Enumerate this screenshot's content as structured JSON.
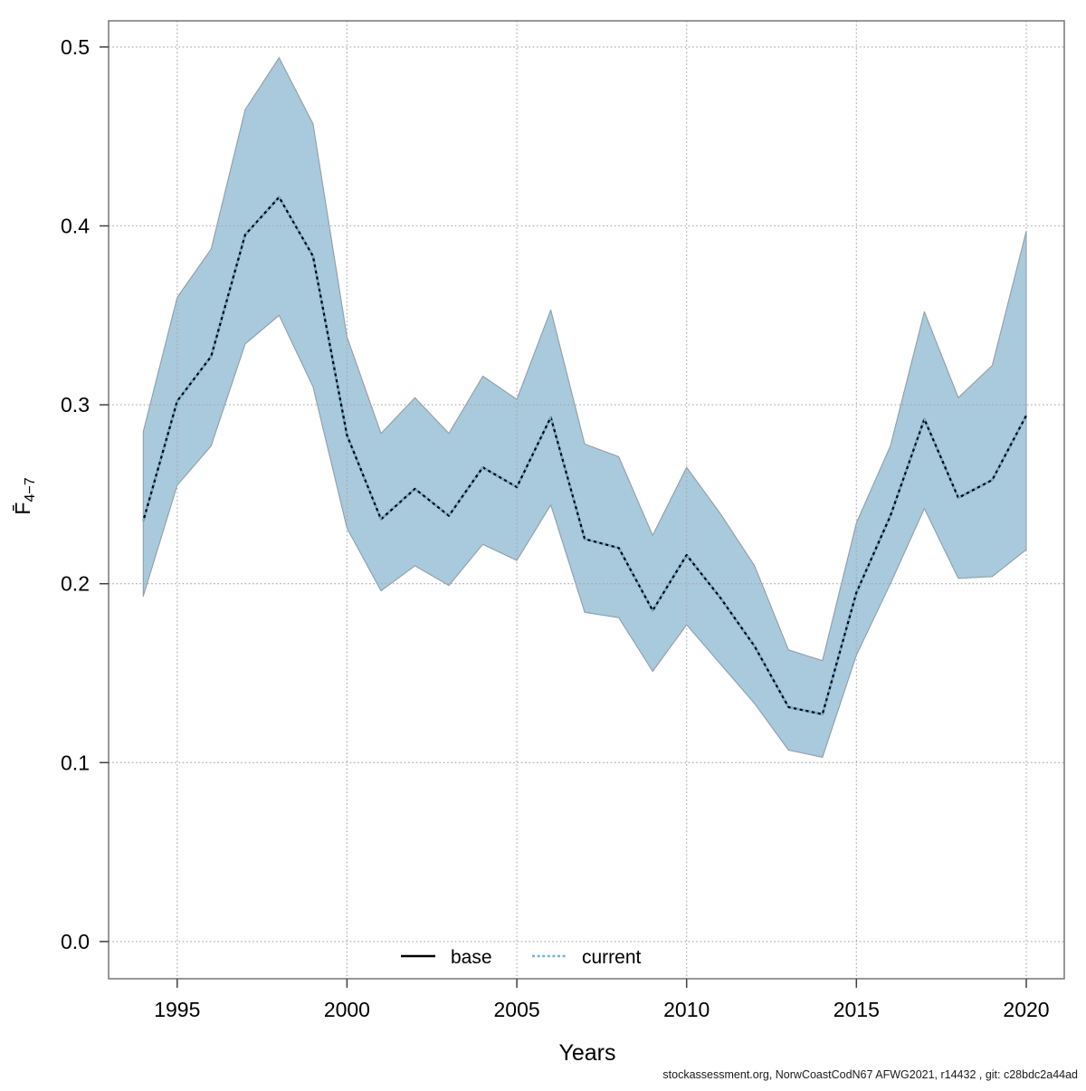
{
  "chart_data": {
    "type": "line",
    "title": "",
    "xlabel": "Years",
    "ylabel_main": "F̄",
    "ylabel_subscript": "4−7",
    "x": [
      1994,
      1995,
      1996,
      1997,
      1998,
      1999,
      2000,
      2001,
      2002,
      2003,
      2004,
      2005,
      2006,
      2007,
      2008,
      2009,
      2010,
      2011,
      2012,
      2013,
      2014,
      2015,
      2016,
      2017,
      2018,
      2019,
      2020
    ],
    "series": [
      {
        "name": "base",
        "line_style": "solid",
        "color": "#000000",
        "values_visually_identical_to": "current"
      },
      {
        "name": "current",
        "line_style": "dotted",
        "color": "#74b4d8",
        "values": [
          0.235,
          0.302,
          0.327,
          0.395,
          0.416,
          0.383,
          0.283,
          0.236,
          0.253,
          0.238,
          0.265,
          0.254,
          0.293,
          0.225,
          0.22,
          0.185,
          0.216,
          0.192,
          0.165,
          0.131,
          0.127,
          0.195,
          0.238,
          0.292,
          0.248,
          0.258,
          0.294
        ]
      }
    ],
    "confidence_band": {
      "lower": [
        0.193,
        0.255,
        0.277,
        0.334,
        0.35,
        0.31,
        0.231,
        0.196,
        0.21,
        0.199,
        0.222,
        0.213,
        0.244,
        0.184,
        0.181,
        0.151,
        0.177,
        0.155,
        0.133,
        0.107,
        0.103,
        0.16,
        0.2,
        0.242,
        0.203,
        0.204,
        0.219
      ],
      "upper": [
        0.285,
        0.36,
        0.387,
        0.465,
        0.494,
        0.457,
        0.338,
        0.284,
        0.304,
        0.284,
        0.316,
        0.303,
        0.353,
        0.278,
        0.271,
        0.227,
        0.265,
        0.239,
        0.21,
        0.163,
        0.157,
        0.234,
        0.277,
        0.352,
        0.304,
        0.322,
        0.397
      ],
      "fill": "#a9c9dc"
    },
    "x_ticks": [
      "1995",
      "2000",
      "2005",
      "2010",
      "2015",
      "2020"
    ],
    "x_tick_years": [
      1995,
      2000,
      2005,
      2010,
      2015,
      2020
    ],
    "y_ticks": [
      "0.0",
      "0.1",
      "0.2",
      "0.3",
      "0.4",
      "0.5"
    ],
    "y_tick_values": [
      0,
      0.1,
      0.2,
      0.3,
      0.4,
      0.5
    ],
    "xlim": [
      1992.98,
      2021.12
    ],
    "ylim": [
      -0.0208,
      0.5146
    ],
    "grid": "dotted-both-axes",
    "legend_position": "bottom-center-inside"
  },
  "legend": {
    "base_label": "base",
    "current_label": "current"
  },
  "footer": {
    "text": "stockassessment.org, NorwCoastCodN67  AFWG2021, r14432 , git: c28bdc2a44ad"
  },
  "colors": {
    "band_fill": "#a9c9dc",
    "band_edge": "#8f9fa8",
    "base_line": "#000000",
    "current_line": "#74b4d8",
    "gridline": "#a8a8a8",
    "plot_border": "#7f7f7f",
    "tick": "#404040",
    "text": "#000000"
  }
}
